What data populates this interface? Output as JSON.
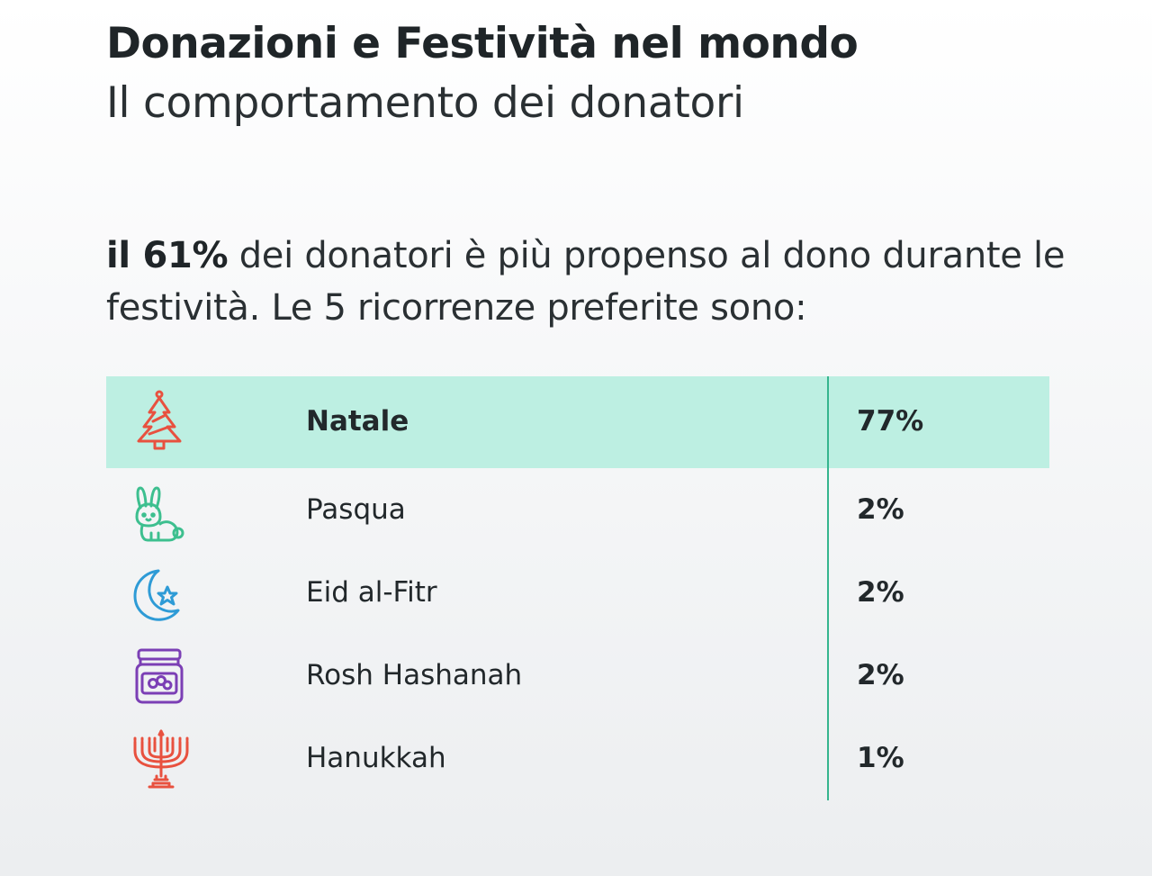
{
  "header": {
    "title": "Donazioni e Festività nel mondo",
    "subtitle": "Il comportamento dei donatori"
  },
  "intro": {
    "highlight": "il 61%",
    "text": " dei donatori è più propenso al dono durante le festività. Le 5 ricorrenze preferite sono:"
  },
  "holidays": [
    {
      "name": "Natale",
      "percent": "77%",
      "icon": "christmas-tree-icon",
      "color": "#e8513f",
      "highlighted": true
    },
    {
      "name": "Pasqua",
      "percent": "2%",
      "icon": "bunny-icon",
      "color": "#3dbf8f",
      "highlighted": false
    },
    {
      "name": "Eid al-Fitr",
      "percent": "2%",
      "icon": "crescent-star-icon",
      "color": "#2e9bd6",
      "highlighted": false
    },
    {
      "name": "Rosh Hashanah",
      "percent": "2%",
      "icon": "honey-jar-icon",
      "color": "#7b3fb5",
      "highlighted": false
    },
    {
      "name": "Hanukkah",
      "percent": "1%",
      "icon": "menorah-icon",
      "color": "#e8513f",
      "highlighted": false
    }
  ],
  "colors": {
    "highlight_row": "#bdefe2",
    "divider": "#35b58e"
  }
}
